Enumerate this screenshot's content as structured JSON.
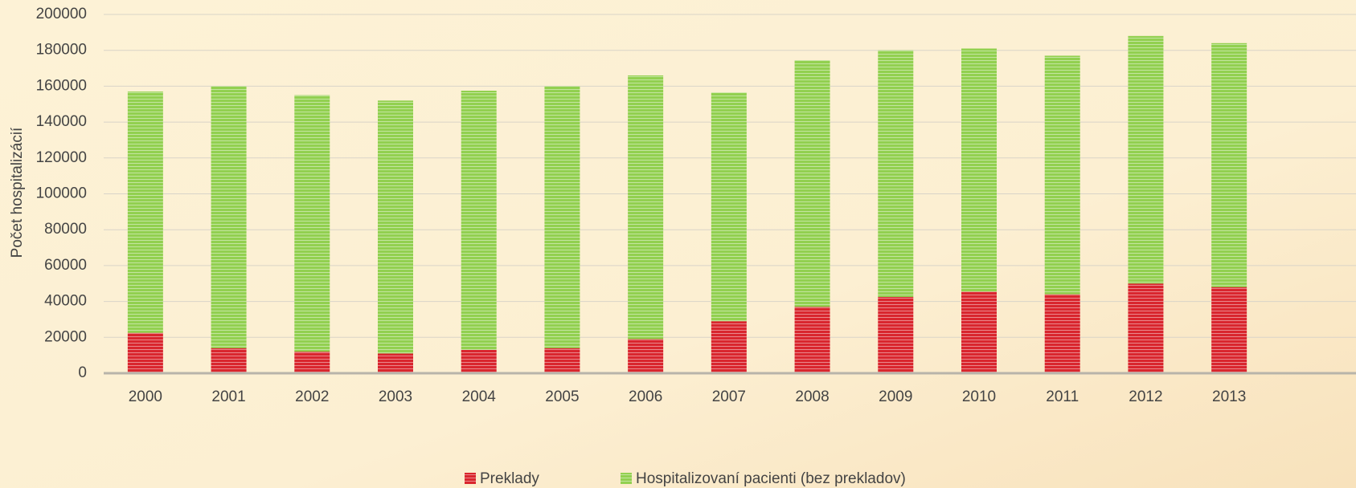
{
  "chart_data": {
    "type": "stacked_bar",
    "y_label": "Počet hospitalizácií",
    "categories": [
      "2000",
      "2001",
      "2002",
      "2003",
      "2004",
      "2005",
      "2006",
      "2007",
      "2008",
      "2009",
      "2010",
      "2011",
      "2012",
      "2013"
    ],
    "series": [
      {
        "name": "Preklady",
        "color": "#d9262e",
        "values": [
          22500,
          14000,
          12000,
          11000,
          13000,
          14000,
          19000,
          29000,
          37000,
          42500,
          45500,
          44000,
          50000,
          48000
        ]
      },
      {
        "name": "Hospitalizovaní pacienti (bez prekladov)",
        "color": "#92d050",
        "values": [
          134500,
          146000,
          143000,
          141000,
          144500,
          146000,
          147000,
          127500,
          137500,
          137500,
          135500,
          133000,
          138000,
          136000
        ]
      }
    ],
    "ylim": [
      0,
      200000
    ],
    "yticks": [
      0,
      20000,
      40000,
      60000,
      80000,
      100000,
      120000,
      140000,
      160000,
      180000,
      200000
    ],
    "grid": true,
    "legend": "bottom"
  }
}
